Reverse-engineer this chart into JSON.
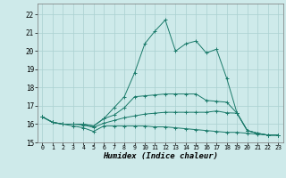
{
  "xlabel": "Humidex (Indice chaleur)",
  "background_color": "#ceeaea",
  "grid_color": "#aad0d0",
  "line_color": "#1a7a6a",
  "xlim": [
    -0.5,
    23.5
  ],
  "ylim": [
    15,
    22.6
  ],
  "yticks": [
    15,
    16,
    17,
    18,
    19,
    20,
    21,
    22
  ],
  "xticks": [
    0,
    1,
    2,
    3,
    4,
    5,
    6,
    7,
    8,
    9,
    10,
    11,
    12,
    13,
    14,
    15,
    16,
    17,
    18,
    19,
    20,
    21,
    22,
    23
  ],
  "series": [
    [
      16.4,
      16.1,
      16.0,
      15.9,
      15.8,
      15.6,
      15.9,
      15.9,
      15.9,
      15.9,
      15.9,
      15.85,
      15.85,
      15.8,
      15.75,
      15.7,
      15.65,
      15.6,
      15.55,
      15.55,
      15.5,
      15.45,
      15.4,
      15.4
    ],
    [
      16.4,
      16.1,
      16.0,
      16.0,
      15.95,
      15.82,
      16.05,
      16.2,
      16.35,
      16.45,
      16.55,
      16.6,
      16.65,
      16.65,
      16.65,
      16.65,
      16.65,
      16.72,
      16.62,
      16.6,
      15.65,
      15.5,
      15.4,
      15.4
    ],
    [
      16.4,
      16.1,
      16.0,
      16.0,
      16.0,
      15.9,
      16.3,
      16.5,
      16.9,
      17.5,
      17.55,
      17.6,
      17.65,
      17.65,
      17.65,
      17.65,
      17.3,
      17.25,
      17.2,
      16.6,
      15.65,
      15.5,
      15.4,
      15.4
    ],
    [
      16.4,
      16.1,
      16.0,
      16.0,
      16.0,
      15.9,
      16.3,
      16.9,
      17.5,
      18.8,
      20.4,
      21.1,
      21.7,
      20.0,
      20.4,
      20.55,
      19.9,
      20.1,
      18.5,
      16.6,
      15.65,
      15.5,
      15.4,
      15.4
    ]
  ]
}
